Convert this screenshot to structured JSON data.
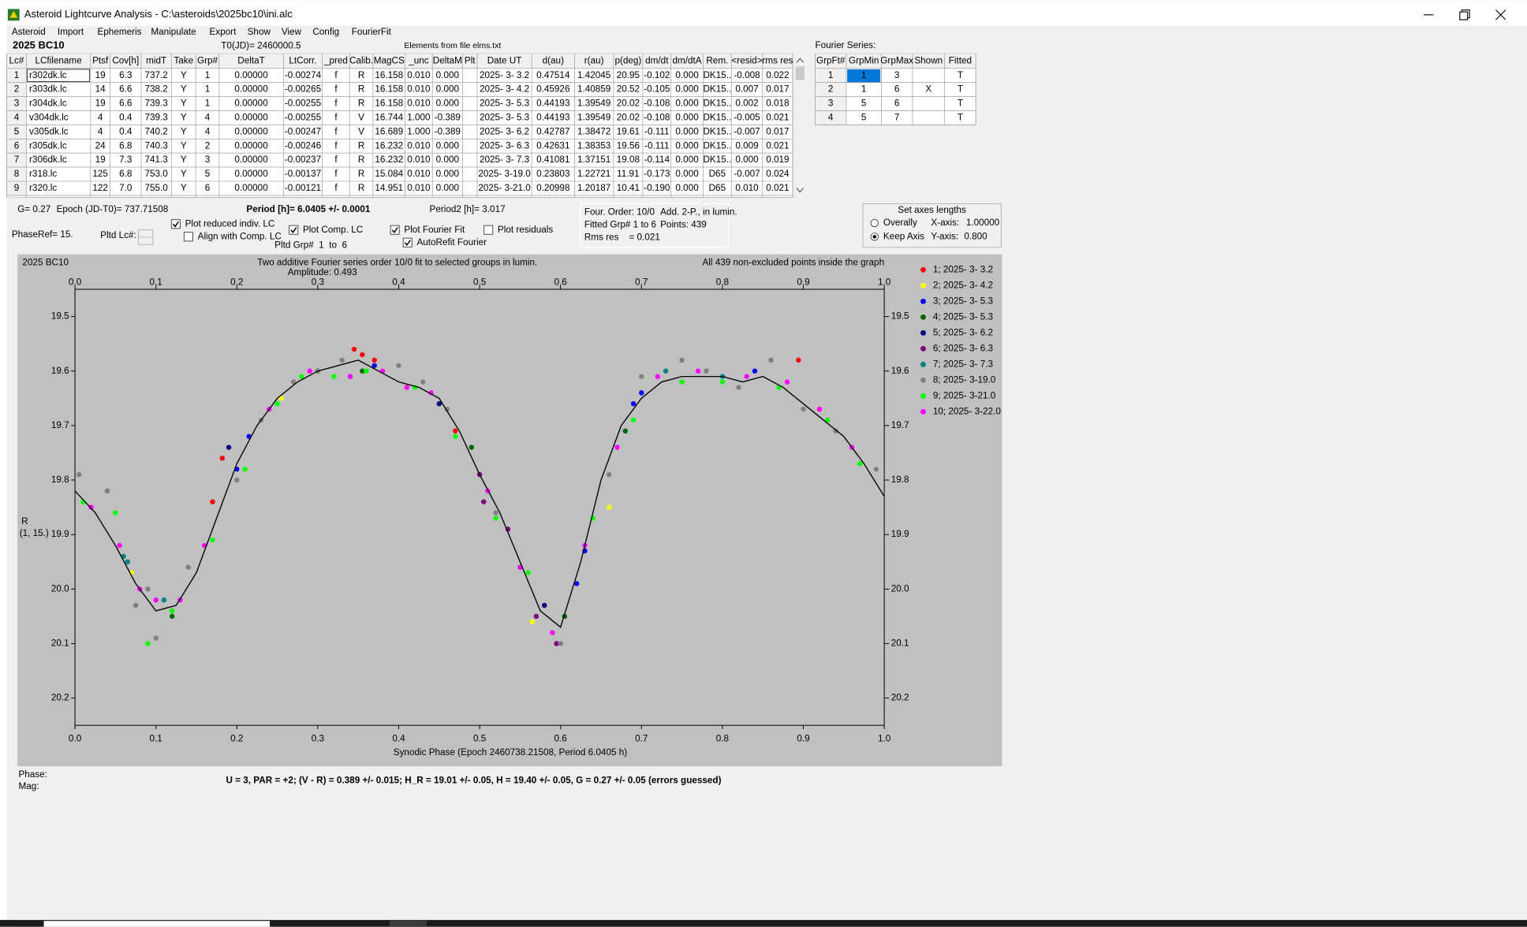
{
  "window": {
    "title": "Asteroid Lightcurve Analysis - C:\\asteroids\\2025bc10\\ini.alc"
  },
  "menu": [
    "Asteroid",
    "Import",
    "Ephemeris",
    "Manipulate",
    "Export",
    "Show",
    "View",
    "Config",
    "FourierFit"
  ],
  "header": {
    "object": "2025 BC10",
    "t0": "T0(JD)= 2460000.5",
    "elements": "Elements from file elms.txt"
  },
  "lc_table": {
    "columns": [
      "Lc#",
      "LCfilename",
      "Ptsf",
      "Cov[h]",
      "midT",
      "Take",
      "Grp#",
      "DeltaT",
      "LtCorr.",
      "_pred",
      "Calib.",
      "MagCS",
      "_unc",
      "DeltaM",
      "Plt",
      "Date UT",
      "d(au)",
      "r(au)",
      "p(deg)",
      "dm/dt",
      "dm/dtA",
      "Rem.",
      "<resid>",
      "rms res"
    ],
    "rows": [
      [
        "1",
        "r302dk.lc",
        "19",
        "6.3",
        "737.2",
        "Y",
        "1",
        "0.00000",
        "-0.00274",
        "f",
        "R",
        "16.158",
        "0.010",
        "0.000",
        null,
        "2025- 3- 3.2",
        "0.47514",
        "1.42045",
        "20.95",
        "-0.102",
        "0.000",
        "DK15..",
        "-0.008",
        "0.022"
      ],
      [
        "2",
        "r303dk.lc",
        "14",
        "6.6",
        "738.2",
        "Y",
        "1",
        "0.00000",
        "-0.00265",
        "f",
        "R",
        "16.158",
        "0.010",
        "0.000",
        null,
        "2025- 3- 4.2",
        "0.45926",
        "1.40859",
        "20.52",
        "-0.105",
        "0.000",
        "DK15..",
        "0.007",
        "0.017"
      ],
      [
        "3",
        "r304dk.lc",
        "19",
        "6.6",
        "739.3",
        "Y",
        "1",
        "0.00000",
        "-0.00255",
        "f",
        "R",
        "16.158",
        "0.010",
        "0.000",
        null,
        "2025- 3- 5.3",
        "0.44193",
        "1.39549",
        "20.02",
        "-0.108",
        "0.000",
        "DK15..",
        "0.002",
        "0.018"
      ],
      [
        "4",
        "v304dk.lc",
        "4",
        "0.4",
        "739.3",
        "Y",
        "4",
        "0.00000",
        "-0.00255",
        "f",
        "V",
        "16.744",
        "1.000",
        "-0.389",
        null,
        "2025- 3- 5.3",
        "0.44193",
        "1.39549",
        "20.02",
        "-0.108",
        "0.000",
        "DK15..",
        "-0.005",
        "0.021"
      ],
      [
        "5",
        "v305dk.lc",
        "4",
        "0.4",
        "740.2",
        "Y",
        "4",
        "0.00000",
        "-0.00247",
        "f",
        "V",
        "16.689",
        "1.000",
        "-0.389",
        null,
        "2025- 3- 6.2",
        "0.42787",
        "1.38472",
        "19.61",
        "-0.111",
        "0.000",
        "DK15..",
        "-0.007",
        "0.017"
      ],
      [
        "6",
        "r305dk.lc",
        "24",
        "6.8",
        "740.3",
        "Y",
        "2",
        "0.00000",
        "-0.00246",
        "f",
        "R",
        "16.232",
        "0.010",
        "0.000",
        null,
        "2025- 3- 6.3",
        "0.42631",
        "1.38353",
        "19.56",
        "-0.111",
        "0.000",
        "DK15..",
        "0.009",
        "0.021"
      ],
      [
        "7",
        "r306dk.lc",
        "19",
        "7.3",
        "741.3",
        "Y",
        "3",
        "0.00000",
        "-0.00237",
        "f",
        "R",
        "16.232",
        "0.010",
        "0.000",
        null,
        "2025- 3- 7.3",
        "0.41081",
        "1.37151",
        "19.08",
        "-0.114",
        "0.000",
        "DK15..",
        "0.000",
        "0.019"
      ],
      [
        "8",
        "r318.lc",
        "125",
        "6.8",
        "753.0",
        "Y",
        "5",
        "0.00000",
        "-0.00137",
        "f",
        "R",
        "15.084",
        "0.010",
        "0.000",
        null,
        "2025- 3-19.0",
        "0.23803",
        "1.22721",
        "11.91",
        "-0.173",
        "0.000",
        "D65",
        "-0.007",
        "0.024"
      ],
      [
        "9",
        "r320.lc",
        "122",
        "7.0",
        "755.0",
        "Y",
        "6",
        "0.00000",
        "-0.00121",
        "f",
        "R",
        "14.951",
        "0.010",
        "0.000",
        null,
        "2025- 3-21.0",
        "0.20998",
        "1.20187",
        "10.41",
        "-0.190",
        "0.000",
        "D65",
        "0.010",
        "0.021"
      ]
    ]
  },
  "fourier_table": {
    "title": "Fourier Series:",
    "columns": [
      "GrpFt#",
      "GrpMin",
      "GrpMax",
      "Shown",
      "Fitted"
    ],
    "rows": [
      [
        "1",
        "1",
        "3",
        null,
        "T"
      ],
      [
        "2",
        "1",
        "6",
        "X",
        "T"
      ],
      [
        "3",
        "5",
        "6",
        null,
        "T"
      ],
      [
        "4",
        "5",
        "7",
        null,
        "T"
      ]
    ]
  },
  "info": {
    "g": "G= 0.27",
    "epoch": "Epoch (JD-T0)= 737.71508",
    "period": "Period [h]= 6.0405 +/- 0.0001",
    "period2": "Period2 [h]= 3.017",
    "phase_ref": "PhaseRef= 15.",
    "pltd_lc": "Pltd Lc#:",
    "pltd_grp": "Pltd Grp#  1  to  6"
  },
  "checkboxes": [
    {
      "label": "Plot reduced indiv. LC",
      "checked": true
    },
    {
      "label": "Align with Comp. LC",
      "checked": false
    },
    {
      "label": "Plot Comp. LC",
      "checked": true
    },
    {
      "label": "Plot Fourier Fit",
      "checked": true
    },
    {
      "label": "AutoRefit Fourier",
      "checked": true
    },
    {
      "label": "Plot residuals",
      "checked": false
    }
  ],
  "fit_info": {
    "order": "Four. Order: 10/0",
    "add": "Add. 2-P., in lumin.",
    "fitted": "Fitted Grp# 1 to 6",
    "points": "Points: 439",
    "rms": "Rms res    = 0.021"
  },
  "axes_box": {
    "title": "Set axes lengths",
    "radios": [
      {
        "label": "Overally",
        "selected": false
      },
      {
        "label": "Keep Axis",
        "selected": true
      }
    ],
    "x_label": "X-axis:",
    "x_value": "1.00000",
    "y_label": "Y-axis:",
    "y_value": "0.800"
  },
  "chart_data": {
    "type": "scatter",
    "object": "2025 BC10",
    "title": "Two additive Fourier series order 10/0 fit to selected groups in lumin.",
    "subtitle": "Amplitude: 0.493",
    "note": "All 439 non-excluded points inside the graph",
    "xlabel": "Synodic Phase (Epoch 2460738.21508, Period 6.0405 h)",
    "ylabel": [
      "R",
      "(1, 15.)"
    ],
    "xlim": [
      0,
      1
    ],
    "xticks": [
      {
        "value": 0,
        "label": "0.0"
      },
      0.1,
      0.2,
      0.3,
      0.4,
      0.5,
      0.6,
      0.7,
      0.8,
      0.9,
      {
        "value": 1,
        "label": "1.0"
      }
    ],
    "ylim": [
      19.45,
      20.25
    ],
    "y_inverted": true,
    "yticks": [
      19.5,
      19.6,
      19.7,
      19.8,
      19.9,
      {
        "value": 20,
        "label": "20.0"
      },
      20.1,
      20.2
    ],
    "series": [
      {
        "name": "1; 2025- 3- 3.2",
        "color": "#ff0000",
        "x": [
          0.17,
          0.182,
          0.345,
          0.355,
          0.37,
          0.47,
          0.894
        ],
        "values": [
          19.84,
          19.76,
          19.56,
          19.57,
          19.58,
          19.71,
          19.58
        ]
      },
      {
        "name": "2; 2025- 3- 4.2",
        "color": "#ffff00",
        "x": [
          0.07,
          0.255,
          0.565,
          0.66,
          0.7,
          0.84
        ],
        "values": [
          19.97,
          19.65,
          20.06,
          19.85,
          19.61,
          19.6
        ]
      },
      {
        "name": "3; 2025- 3- 5.3",
        "color": "#0000ff",
        "x": [
          0.2,
          0.215,
          0.37,
          0.62,
          0.63,
          0.69,
          0.7,
          0.84
        ],
        "values": [
          19.78,
          19.72,
          19.59,
          19.99,
          19.93,
          19.66,
          19.64,
          19.6
        ]
      },
      {
        "name": "4; 2025- 3- 5.3",
        "color": "#006400",
        "x": [
          0.12,
          0.355,
          0.49,
          0.605,
          0.68
        ],
        "values": [
          20.05,
          19.6,
          19.74,
          20.05,
          19.71
        ]
      },
      {
        "name": "5; 2025- 3- 6.2",
        "color": "#000080",
        "x": [
          0.19,
          0.3,
          0.45,
          0.58
        ],
        "values": [
          19.74,
          19.6,
          19.66,
          20.03
        ]
      },
      {
        "name": "6; 2025- 3- 6.3",
        "color": "#800080",
        "x": [
          0.5,
          0.505,
          0.535,
          0.57,
          0.595
        ],
        "values": [
          19.79,
          19.84,
          19.89,
          20.05,
          20.1
        ]
      },
      {
        "name": "7; 2025- 3- 7.3",
        "color": "#008080",
        "x": [
          0.06,
          0.065,
          0.11,
          0.55,
          0.73,
          0.8
        ],
        "values": [
          19.94,
          19.95,
          20.02,
          19.96,
          19.6,
          19.61
        ]
      },
      {
        "name": "8; 2025- 3-19.0",
        "color": "#808080",
        "x": [
          0.005,
          0.04,
          0.075,
          0.09,
          0.1,
          0.14,
          0.2,
          0.23,
          0.27,
          0.3,
          0.33,
          0.4,
          0.43,
          0.46,
          0.52,
          0.6,
          0.66,
          0.7,
          0.75,
          0.78,
          0.82,
          0.86,
          0.9,
          0.94,
          0.99
        ],
        "values": [
          19.79,
          19.82,
          20.03,
          20.0,
          20.09,
          19.96,
          19.8,
          19.69,
          19.62,
          19.6,
          19.58,
          19.59,
          19.62,
          19.67,
          19.86,
          20.1,
          19.79,
          19.61,
          19.58,
          19.6,
          19.63,
          19.58,
          19.67,
          19.71,
          19.78
        ]
      },
      {
        "name": "9; 2025- 3-21.0",
        "color": "#00ff00",
        "x": [
          0.01,
          0.05,
          0.09,
          0.12,
          0.17,
          0.21,
          0.25,
          0.28,
          0.32,
          0.36,
          0.42,
          0.47,
          0.52,
          0.56,
          0.64,
          0.69,
          0.75,
          0.8,
          0.87,
          0.93,
          0.97
        ],
        "values": [
          19.84,
          19.86,
          20.1,
          20.04,
          19.91,
          19.78,
          19.66,
          19.61,
          19.61,
          19.6,
          19.63,
          19.72,
          19.87,
          19.97,
          19.87,
          19.69,
          19.62,
          19.62,
          19.63,
          19.69,
          19.77
        ]
      },
      {
        "name": "10; 2025- 3-22.0",
        "color": "#ff00ff",
        "x": [
          0.02,
          0.055,
          0.08,
          0.1,
          0.13,
          0.16,
          0.24,
          0.29,
          0.34,
          0.38,
          0.41,
          0.44,
          0.51,
          0.55,
          0.59,
          0.63,
          0.67,
          0.72,
          0.77,
          0.83,
          0.88,
          0.92,
          0.96
        ],
        "values": [
          19.85,
          19.92,
          20.0,
          20.02,
          20.02,
          19.92,
          19.67,
          19.6,
          19.61,
          19.6,
          19.63,
          19.64,
          19.82,
          19.96,
          20.08,
          19.92,
          19.74,
          19.61,
          19.6,
          19.61,
          19.62,
          19.67,
          19.74
        ]
      }
    ],
    "fit": {
      "color": "#000000",
      "x": [
        0,
        0.025,
        0.05,
        0.075,
        0.1,
        0.125,
        0.15,
        0.175,
        0.2,
        0.225,
        0.25,
        0.275,
        0.3,
        0.325,
        0.35,
        0.375,
        0.4,
        0.425,
        0.45,
        0.475,
        0.5,
        0.525,
        0.55,
        0.575,
        0.6,
        0.625,
        0.65,
        0.675,
        0.7,
        0.725,
        0.75,
        0.775,
        0.8,
        0.825,
        0.85,
        0.875,
        0.9,
        0.925,
        0.95,
        0.975,
        1
      ],
      "values": [
        19.82,
        19.86,
        19.92,
        19.99,
        20.04,
        20.03,
        19.97,
        19.87,
        19.77,
        19.7,
        19.65,
        19.62,
        19.6,
        19.59,
        19.58,
        19.6,
        19.62,
        19.63,
        19.65,
        19.71,
        19.79,
        19.86,
        19.95,
        20.04,
        20.07,
        19.95,
        19.8,
        19.7,
        19.65,
        19.62,
        19.61,
        19.61,
        19.61,
        19.62,
        19.61,
        19.63,
        19.66,
        19.69,
        19.72,
        19.77,
        19.83
      ]
    },
    "background": "#c0c0c0"
  },
  "footer": {
    "phase": "Phase:",
    "mag": "Mag:",
    "result": "U = 3, PAR = +2; (V - R) = 0.389 +/- 0.015; H_R = 19.01 +/- 0.05, H = 19.40 +/- 0.05, G = 0.27 +/- 0.05 (errors guessed)"
  }
}
